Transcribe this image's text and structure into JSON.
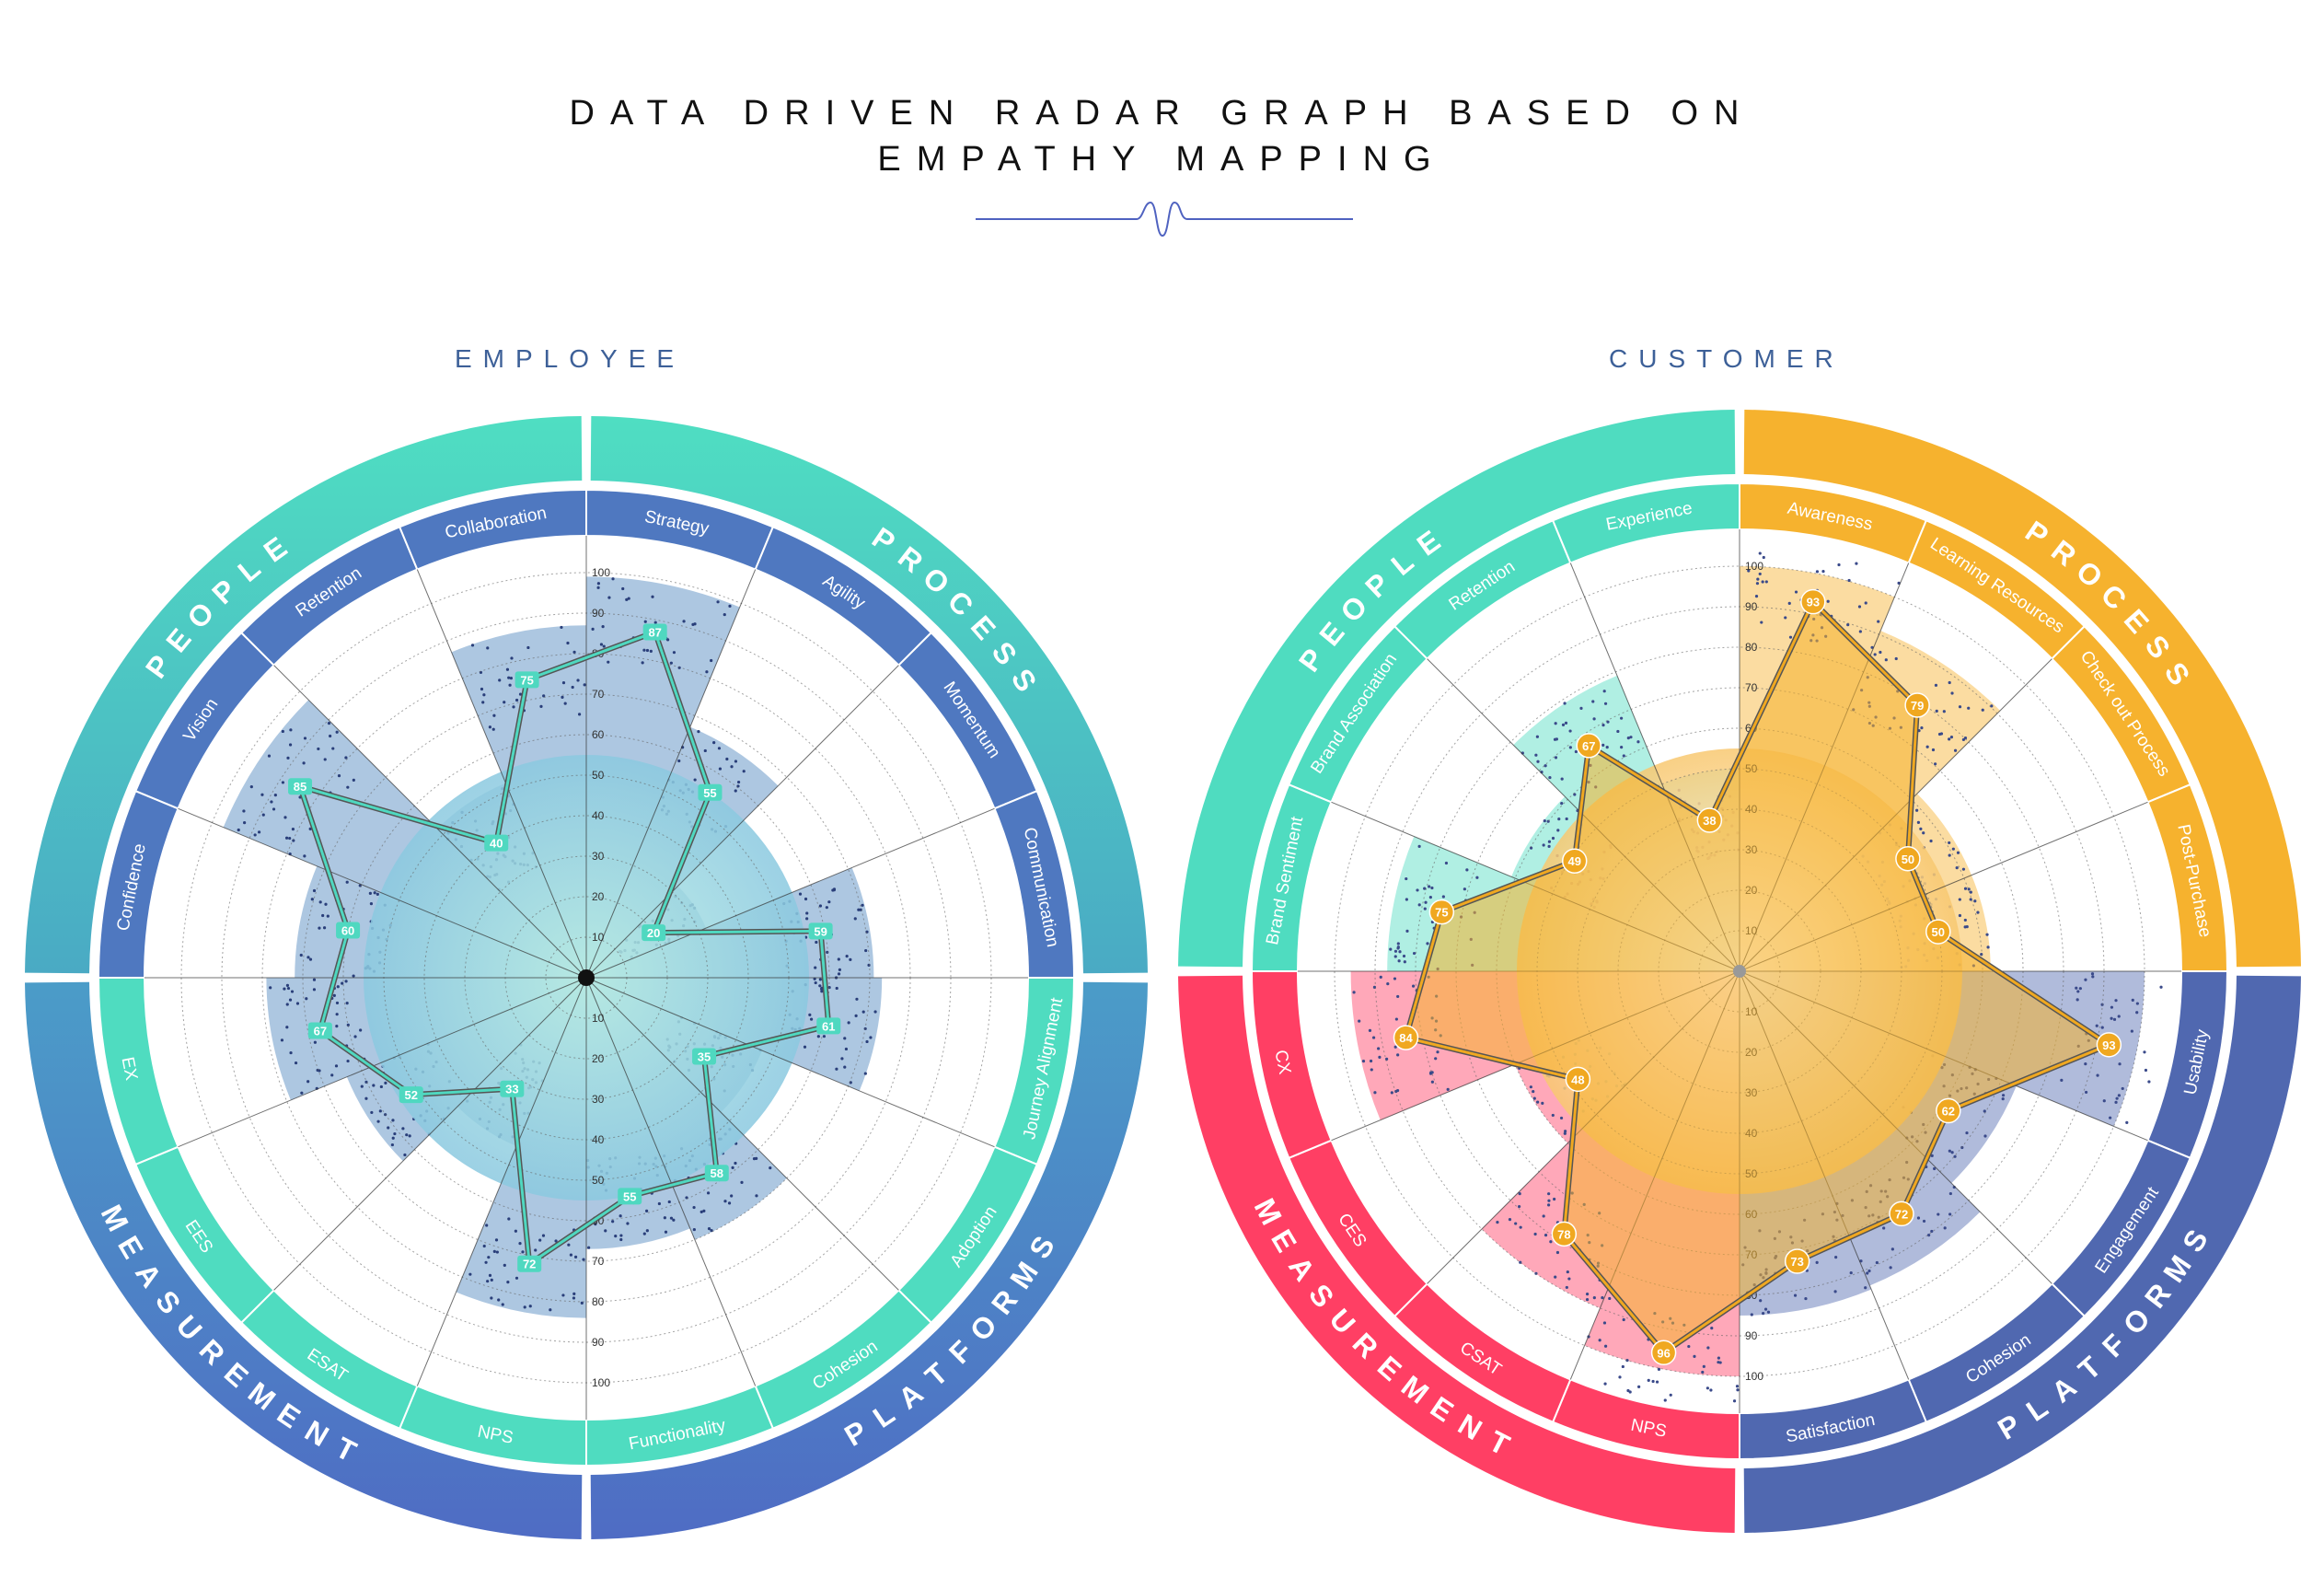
{
  "title": {
    "line1": "DATA DRIVEN RADAR GRAPH BASED ON",
    "line2": "EMPATHY MAPPING"
  },
  "chart_data": [
    {
      "type": "radar",
      "title": "EMPLOYEE",
      "scale": {
        "min": 0,
        "max": 100,
        "ticks": [
          10,
          20,
          30,
          40,
          50,
          60,
          70,
          80,
          90,
          100
        ]
      },
      "groups": [
        {
          "name": "PEOPLE",
          "color": "#4fd8c0"
        },
        {
          "name": "PROCESS",
          "color": "#4fd8c0"
        },
        {
          "name": "PLATFORMS",
          "color": "#4f7cc4"
        },
        {
          "name": "MEASUREMENT",
          "color": "#4f7cc4"
        }
      ],
      "axes": [
        {
          "label": "Strategy",
          "group": "PROCESS",
          "value": 87
        },
        {
          "label": "Agility",
          "group": "PROCESS",
          "value": 55
        },
        {
          "label": "Momentum",
          "group": "PROCESS",
          "value": 20
        },
        {
          "label": "Communication",
          "group": "PROCESS",
          "value": 59
        },
        {
          "label": "Journey Alignment",
          "group": "PLATFORMS",
          "value": 61
        },
        {
          "label": "Adoption",
          "group": "PLATFORMS",
          "value": 35
        },
        {
          "label": "Cohesion",
          "group": "PLATFORMS",
          "value": 58
        },
        {
          "label": "Functionality",
          "group": "PLATFORMS",
          "value": 55
        },
        {
          "label": "NPS",
          "group": "MEASUREMENT",
          "value": 72
        },
        {
          "label": "ESAT",
          "group": "MEASUREMENT",
          "value": 33
        },
        {
          "label": "EES",
          "group": "MEASUREMENT",
          "value": 52
        },
        {
          "label": "EX",
          "group": "MEASUREMENT",
          "value": 67
        },
        {
          "label": "Confidence",
          "group": "PEOPLE",
          "value": 60
        },
        {
          "label": "Vision",
          "group": "PEOPLE",
          "value": 85
        },
        {
          "label": "Retention",
          "group": "PEOPLE",
          "value": 40
        },
        {
          "label": "Collaboration",
          "group": "PEOPLE",
          "value": 75
        }
      ],
      "line_color": "#4fd8c0",
      "band_color": "#4a82bd",
      "center_color": "#9fe6d6"
    },
    {
      "type": "radar",
      "title": "CUSTOMER",
      "scale": {
        "min": 0,
        "max": 100,
        "ticks": [
          10,
          20,
          30,
          40,
          50,
          60,
          70,
          80,
          90,
          100
        ]
      },
      "groups": [
        {
          "name": "PEOPLE",
          "color": "#4fdcc0"
        },
        {
          "name": "PROCESS",
          "color": "#f6b22e"
        },
        {
          "name": "PLATFORMS",
          "color": "#5068b0"
        },
        {
          "name": "MEASUREMENT",
          "color": "#ff3f64"
        }
      ],
      "axes": [
        {
          "label": "Awareness",
          "group": "PROCESS",
          "value": 93
        },
        {
          "label": "Learning Resources",
          "group": "PROCESS",
          "value": 79
        },
        {
          "label": "Check out Process",
          "group": "PROCESS",
          "value": 50
        },
        {
          "label": "Post-Purchase",
          "group": "PROCESS",
          "value": 50
        },
        {
          "label": "Usability",
          "group": "PLATFORMS",
          "value": 93
        },
        {
          "label": "Engagement",
          "group": "PLATFORMS",
          "value": 62
        },
        {
          "label": "Cohesion",
          "group": "PLATFORMS",
          "value": 72
        },
        {
          "label": "Satisfaction",
          "group": "PLATFORMS",
          "value": 73
        },
        {
          "label": "NPS",
          "group": "MEASUREMENT",
          "value": 96
        },
        {
          "label": "CSAT",
          "group": "MEASUREMENT",
          "value": 78
        },
        {
          "label": "CES",
          "group": "MEASUREMENT",
          "value": 48
        },
        {
          "label": "CX",
          "group": "MEASUREMENT",
          "value": 84
        },
        {
          "label": "Brand Sentiment",
          "group": "PEOPLE",
          "value": 75
        },
        {
          "label": "Brand Association",
          "group": "PEOPLE",
          "value": 49
        },
        {
          "label": "Retention",
          "group": "PEOPLE",
          "value": 67
        },
        {
          "label": "Experience",
          "group": "PEOPLE",
          "value": 38
        }
      ],
      "line_color": "#f0a820",
      "fill_color": "#f6b22e",
      "center_color": "#fff6e0"
    }
  ]
}
